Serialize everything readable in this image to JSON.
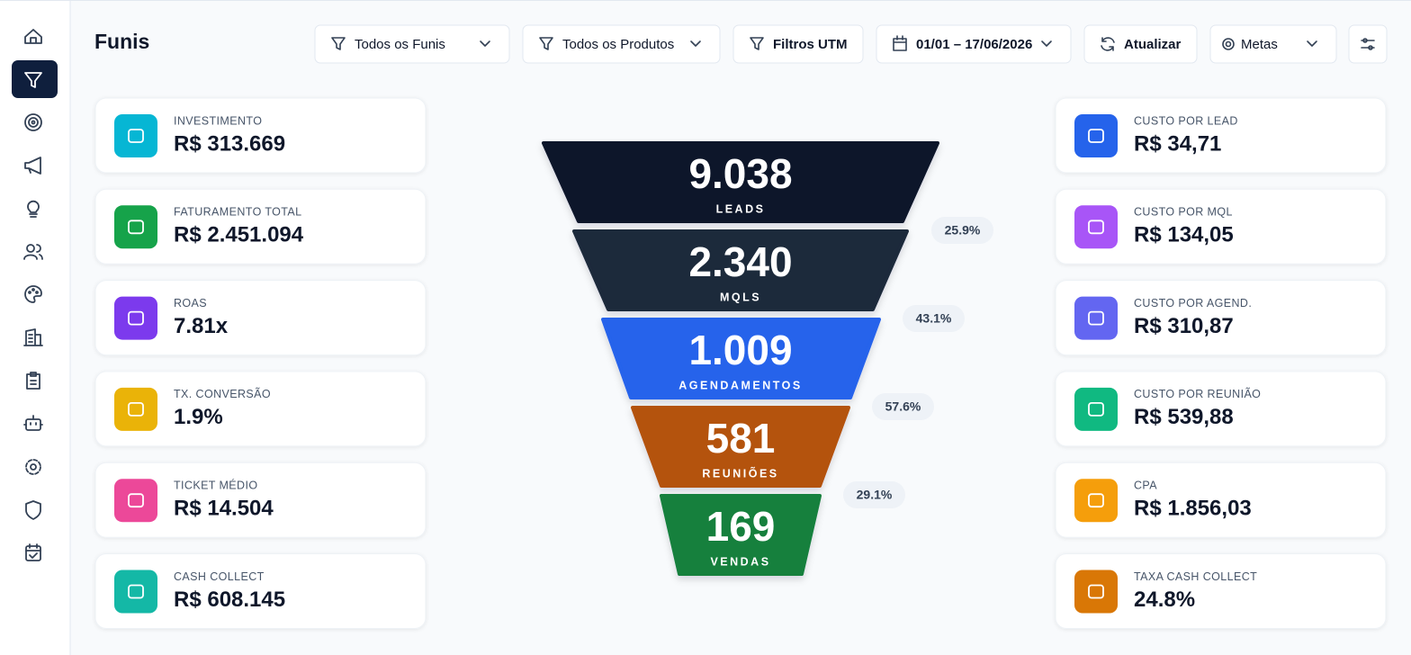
{
  "header": {
    "title": "Funis",
    "filters": [
      "Todos os Funis",
      "Todos os Produtos",
      "Filtros UTM",
      "01/01 – 17/06/2026",
      "Atualizar",
      "Metas"
    ]
  },
  "kpis_left": [
    {
      "label": "INVESTIMENTO",
      "value": "R$ 313.669",
      "color": "#06b6d4"
    },
    {
      "label": "FATURAMENTO TOTAL",
      "value": "R$ 2.451.094",
      "color": "#16a34a"
    },
    {
      "label": "ROAS",
      "value": "7.81x",
      "color": "#7c3aed"
    },
    {
      "label": "TX. CONVERSÃO",
      "value": "1.9%",
      "color": "#eab308"
    },
    {
      "label": "TICKET MÉDIO",
      "value": "R$ 14.504",
      "color": "#ec4899"
    },
    {
      "label": "CASH COLLECT",
      "value": "R$ 608.145",
      "color": "#14b8a6"
    }
  ],
  "kpis_right": [
    {
      "label": "CUSTO POR LEAD",
      "value": "R$ 34,71",
      "color": "#2563eb"
    },
    {
      "label": "CUSTO POR MQL",
      "value": "R$ 134,05",
      "color": "#a855f7"
    },
    {
      "label": "CUSTO POR AGEND.",
      "value": "R$ 310,87",
      "color": "#6366f1"
    },
    {
      "label": "CUSTO POR REUNIÃO",
      "value": "R$ 539,88",
      "color": "#10b981"
    },
    {
      "label": "CPA",
      "value": "R$ 1.856,03",
      "color": "#f59e0b"
    },
    {
      "label": "TAXA CASH COLLECT",
      "value": "24.8%",
      "color": "#d97706"
    }
  ],
  "funnel": {
    "stages": [
      {
        "value": "9.038",
        "label": "LEADS",
        "color": "#0f172a"
      },
      {
        "value": "2.340",
        "label": "MQLS",
        "color": "#1e293b"
      },
      {
        "value": "1.009",
        "label": "AGENDAMENTOS",
        "color": "#2563eb"
      },
      {
        "value": "581",
        "label": "REUNIÕES",
        "color": "#b45309"
      },
      {
        "value": "169",
        "label": "VENDAS",
        "color": "#15803d"
      }
    ],
    "conversions": [
      "25.9%",
      "43.1%",
      "57.6%",
      "29.1%"
    ]
  }
}
